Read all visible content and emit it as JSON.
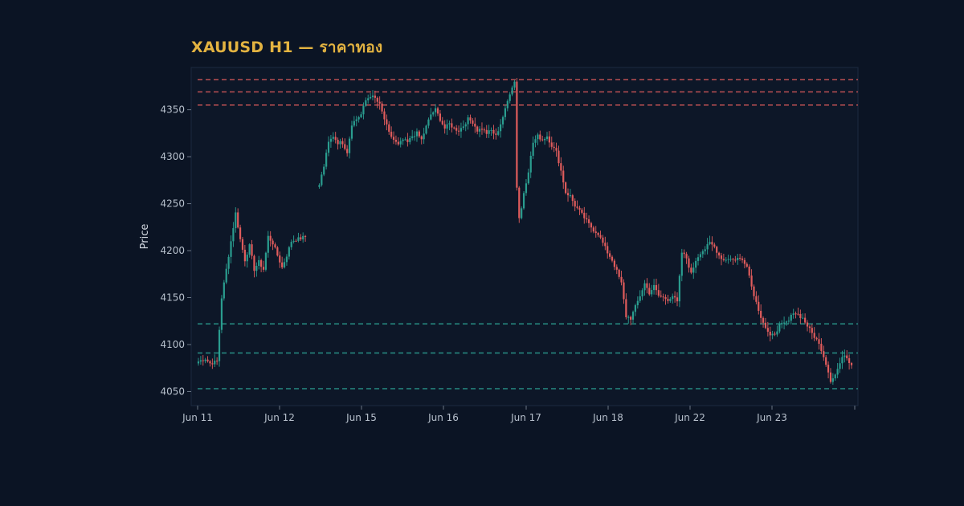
{
  "chart_data": {
    "type": "candlestick",
    "title": "XAUUSD H1 — ราคาทอง",
    "ylabel": "Price",
    "xlabel": "",
    "ylim": [
      4035,
      4395
    ],
    "yticks": [
      4050,
      4100,
      4150,
      4200,
      4250,
      4300,
      4350
    ],
    "xticks": [
      "Jun 11",
      "Jun 12",
      "Jun 15",
      "Jun 16",
      "Jun 17",
      "Jun 18",
      "Jun 22",
      "Jun 23"
    ],
    "grid": false,
    "colors": {
      "up": "#2a9d8f",
      "down": "#e05c5c",
      "resistance": "#e05c5c",
      "support": "#2a9d8f",
      "title": "#e3b341",
      "background": "#0b1424",
      "plot_background": "#0d1728",
      "axis_text": "#b7c0cc"
    },
    "resistance_levels": [
      4382,
      4369,
      4355
    ],
    "support_levels": [
      4122,
      4091,
      4053
    ],
    "segments": [
      {
        "session": "Jun 11",
        "anchors": [
          [
            0,
            4082
          ],
          [
            3,
            4085
          ],
          [
            5,
            4080
          ],
          [
            8,
            4082
          ],
          [
            10,
            4150
          ],
          [
            12,
            4180
          ],
          [
            14,
            4210
          ],
          [
            16,
            4240
          ],
          [
            18,
            4212
          ],
          [
            20,
            4190
          ],
          [
            22,
            4205
          ],
          [
            24,
            4180
          ],
          [
            26,
            4188
          ],
          [
            28,
            4180
          ],
          [
            30,
            4215
          ],
          [
            32,
            4208
          ],
          [
            34,
            4195
          ],
          [
            36,
            4182
          ],
          [
            38,
            4195
          ],
          [
            40,
            4210
          ],
          [
            42,
            4212
          ],
          [
            44,
            4213
          ],
          [
            46,
            4215
          ]
        ]
      },
      {
        "session": "Jun 12",
        "anchors": [
          [
            52,
            4270
          ],
          [
            54,
            4290
          ],
          [
            56,
            4315
          ],
          [
            58,
            4322
          ],
          [
            60,
            4315
          ],
          [
            62,
            4315
          ],
          [
            64,
            4305
          ],
          [
            66,
            4335
          ],
          [
            68,
            4340
          ],
          [
            70,
            4345
          ],
          [
            72,
            4360
          ],
          [
            74,
            4365
          ],
          [
            76,
            4362
          ],
          [
            78,
            4355
          ],
          [
            80,
            4340
          ],
          [
            82,
            4325
          ],
          [
            84,
            4318
          ],
          [
            86,
            4312
          ],
          [
            88,
            4318
          ],
          [
            90,
            4315
          ],
          [
            92,
            4322
          ],
          [
            94,
            4325
          ],
          [
            96,
            4318
          ],
          [
            98,
            4332
          ],
          [
            100,
            4345
          ],
          [
            102,
            4350
          ],
          [
            104,
            4340
          ],
          [
            106,
            4330
          ],
          [
            108,
            4335
          ],
          [
            110,
            4330
          ],
          [
            112,
            4328
          ],
          [
            114,
            4333
          ],
          [
            116,
            4340
          ],
          [
            118,
            4337
          ],
          [
            120,
            4328
          ],
          [
            122,
            4330
          ],
          [
            124,
            4325
          ],
          [
            126,
            4328
          ],
          [
            128,
            4322
          ],
          [
            130,
            4335
          ],
          [
            132,
            4350
          ],
          [
            134,
            4368
          ],
          [
            135,
            4375
          ],
          [
            136,
            4380
          ],
          [
            137,
            4268
          ],
          [
            138,
            4235
          ],
          [
            139,
            4245
          ],
          [
            140,
            4262
          ],
          [
            142,
            4285
          ],
          [
            144,
            4315
          ],
          [
            146,
            4322
          ],
          [
            148,
            4318
          ],
          [
            150,
            4322
          ],
          [
            152,
            4312
          ],
          [
            154,
            4305
          ],
          [
            156,
            4285
          ],
          [
            158,
            4262
          ],
          [
            160,
            4258
          ],
          [
            162,
            4248
          ],
          [
            164,
            4242
          ],
          [
            166,
            4235
          ],
          [
            168,
            4228
          ],
          [
            170,
            4222
          ],
          [
            172,
            4218
          ],
          [
            174,
            4208
          ],
          [
            176,
            4198
          ],
          [
            178,
            4190
          ],
          [
            180,
            4178
          ],
          [
            182,
            4165
          ],
          [
            184,
            4130
          ],
          [
            186,
            4128
          ],
          [
            188,
            4140
          ],
          [
            190,
            4152
          ],
          [
            192,
            4165
          ],
          [
            194,
            4155
          ],
          [
            196,
            4162
          ],
          [
            198,
            4152
          ],
          [
            200,
            4150
          ],
          [
            202,
            4148
          ],
          [
            204,
            4152
          ],
          [
            206,
            4145
          ],
          [
            208,
            4198
          ],
          [
            210,
            4192
          ],
          [
            212,
            4175
          ],
          [
            214,
            4190
          ],
          [
            216,
            4198
          ],
          [
            218,
            4202
          ],
          [
            220,
            4208
          ],
          [
            222,
            4204
          ],
          [
            224,
            4195
          ],
          [
            226,
            4190
          ],
          [
            228,
            4192
          ],
          [
            230,
            4190
          ],
          [
            232,
            4192
          ],
          [
            234,
            4190
          ],
          [
            236,
            4185
          ],
          [
            238,
            4162
          ],
          [
            240,
            4145
          ],
          [
            242,
            4130
          ],
          [
            244,
            4118
          ],
          [
            246,
            4108
          ],
          [
            248,
            4112
          ],
          [
            250,
            4120
          ],
          [
            252,
            4122
          ],
          [
            254,
            4125
          ],
          [
            256,
            4135
          ],
          [
            258,
            4132
          ],
          [
            260,
            4128
          ],
          [
            262,
            4120
          ],
          [
            264,
            4112
          ],
          [
            266,
            4105
          ],
          [
            268,
            4095
          ],
          [
            270,
            4080
          ],
          [
            272,
            4062
          ],
          [
            274,
            4068
          ],
          [
            276,
            4080
          ],
          [
            278,
            4090
          ],
          [
            280,
            4082
          ],
          [
            281,
            4078
          ]
        ]
      }
    ]
  }
}
